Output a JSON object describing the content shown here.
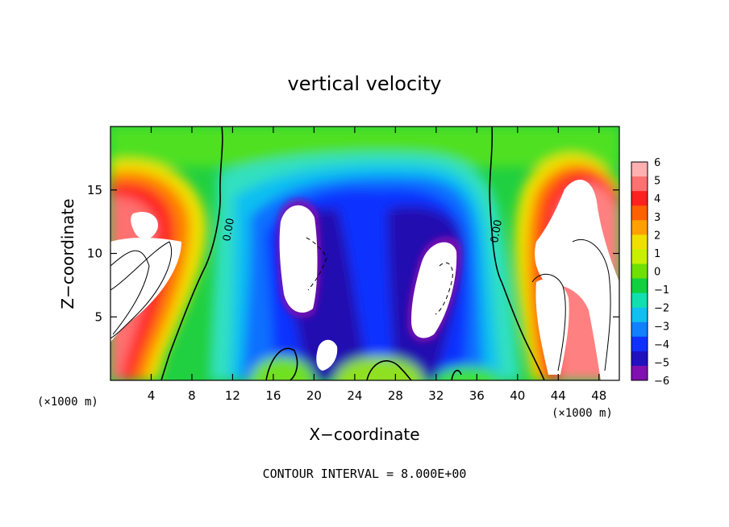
{
  "chart_data": {
    "type": "heatmap",
    "title": "vertical velocity",
    "xlabel": "X−coordinate",
    "ylabel": "Z−coordinate",
    "x_unit_left": "(×1000 m)",
    "x_unit_right": "(×1000 m)",
    "xlim": [
      0,
      50
    ],
    "ylim": [
      0,
      20
    ],
    "x_ticks": [
      4,
      8,
      12,
      16,
      20,
      24,
      28,
      32,
      36,
      40,
      44,
      48
    ],
    "y_ticks": [
      5,
      10,
      15
    ],
    "colorbar": {
      "min": -6,
      "max": 6,
      "ticks": [
        6,
        5,
        4,
        3,
        2,
        1,
        0,
        -1,
        -2,
        -3,
        -4,
        -5,
        -6
      ],
      "tick_labels": [
        "6",
        "5",
        "4",
        "3",
        "2",
        "1",
        "0",
        "−1",
        "−2",
        "−3",
        "−4",
        "−5",
        "−6"
      ],
      "colors": [
        "#ffb0b0",
        "#ff7070",
        "#ff2020",
        "#ff6000",
        "#ffa000",
        "#f0e000",
        "#c8f000",
        "#70e000",
        "#10d040",
        "#10e0b0",
        "#10c0f0",
        "#1080ff",
        "#1030ff",
        "#2010c0",
        "#8010b0"
      ]
    },
    "contour_labels": [
      "0.00",
      "0.00"
    ],
    "footer": "CONTOUR INTERVAL = 8.000E+00"
  }
}
